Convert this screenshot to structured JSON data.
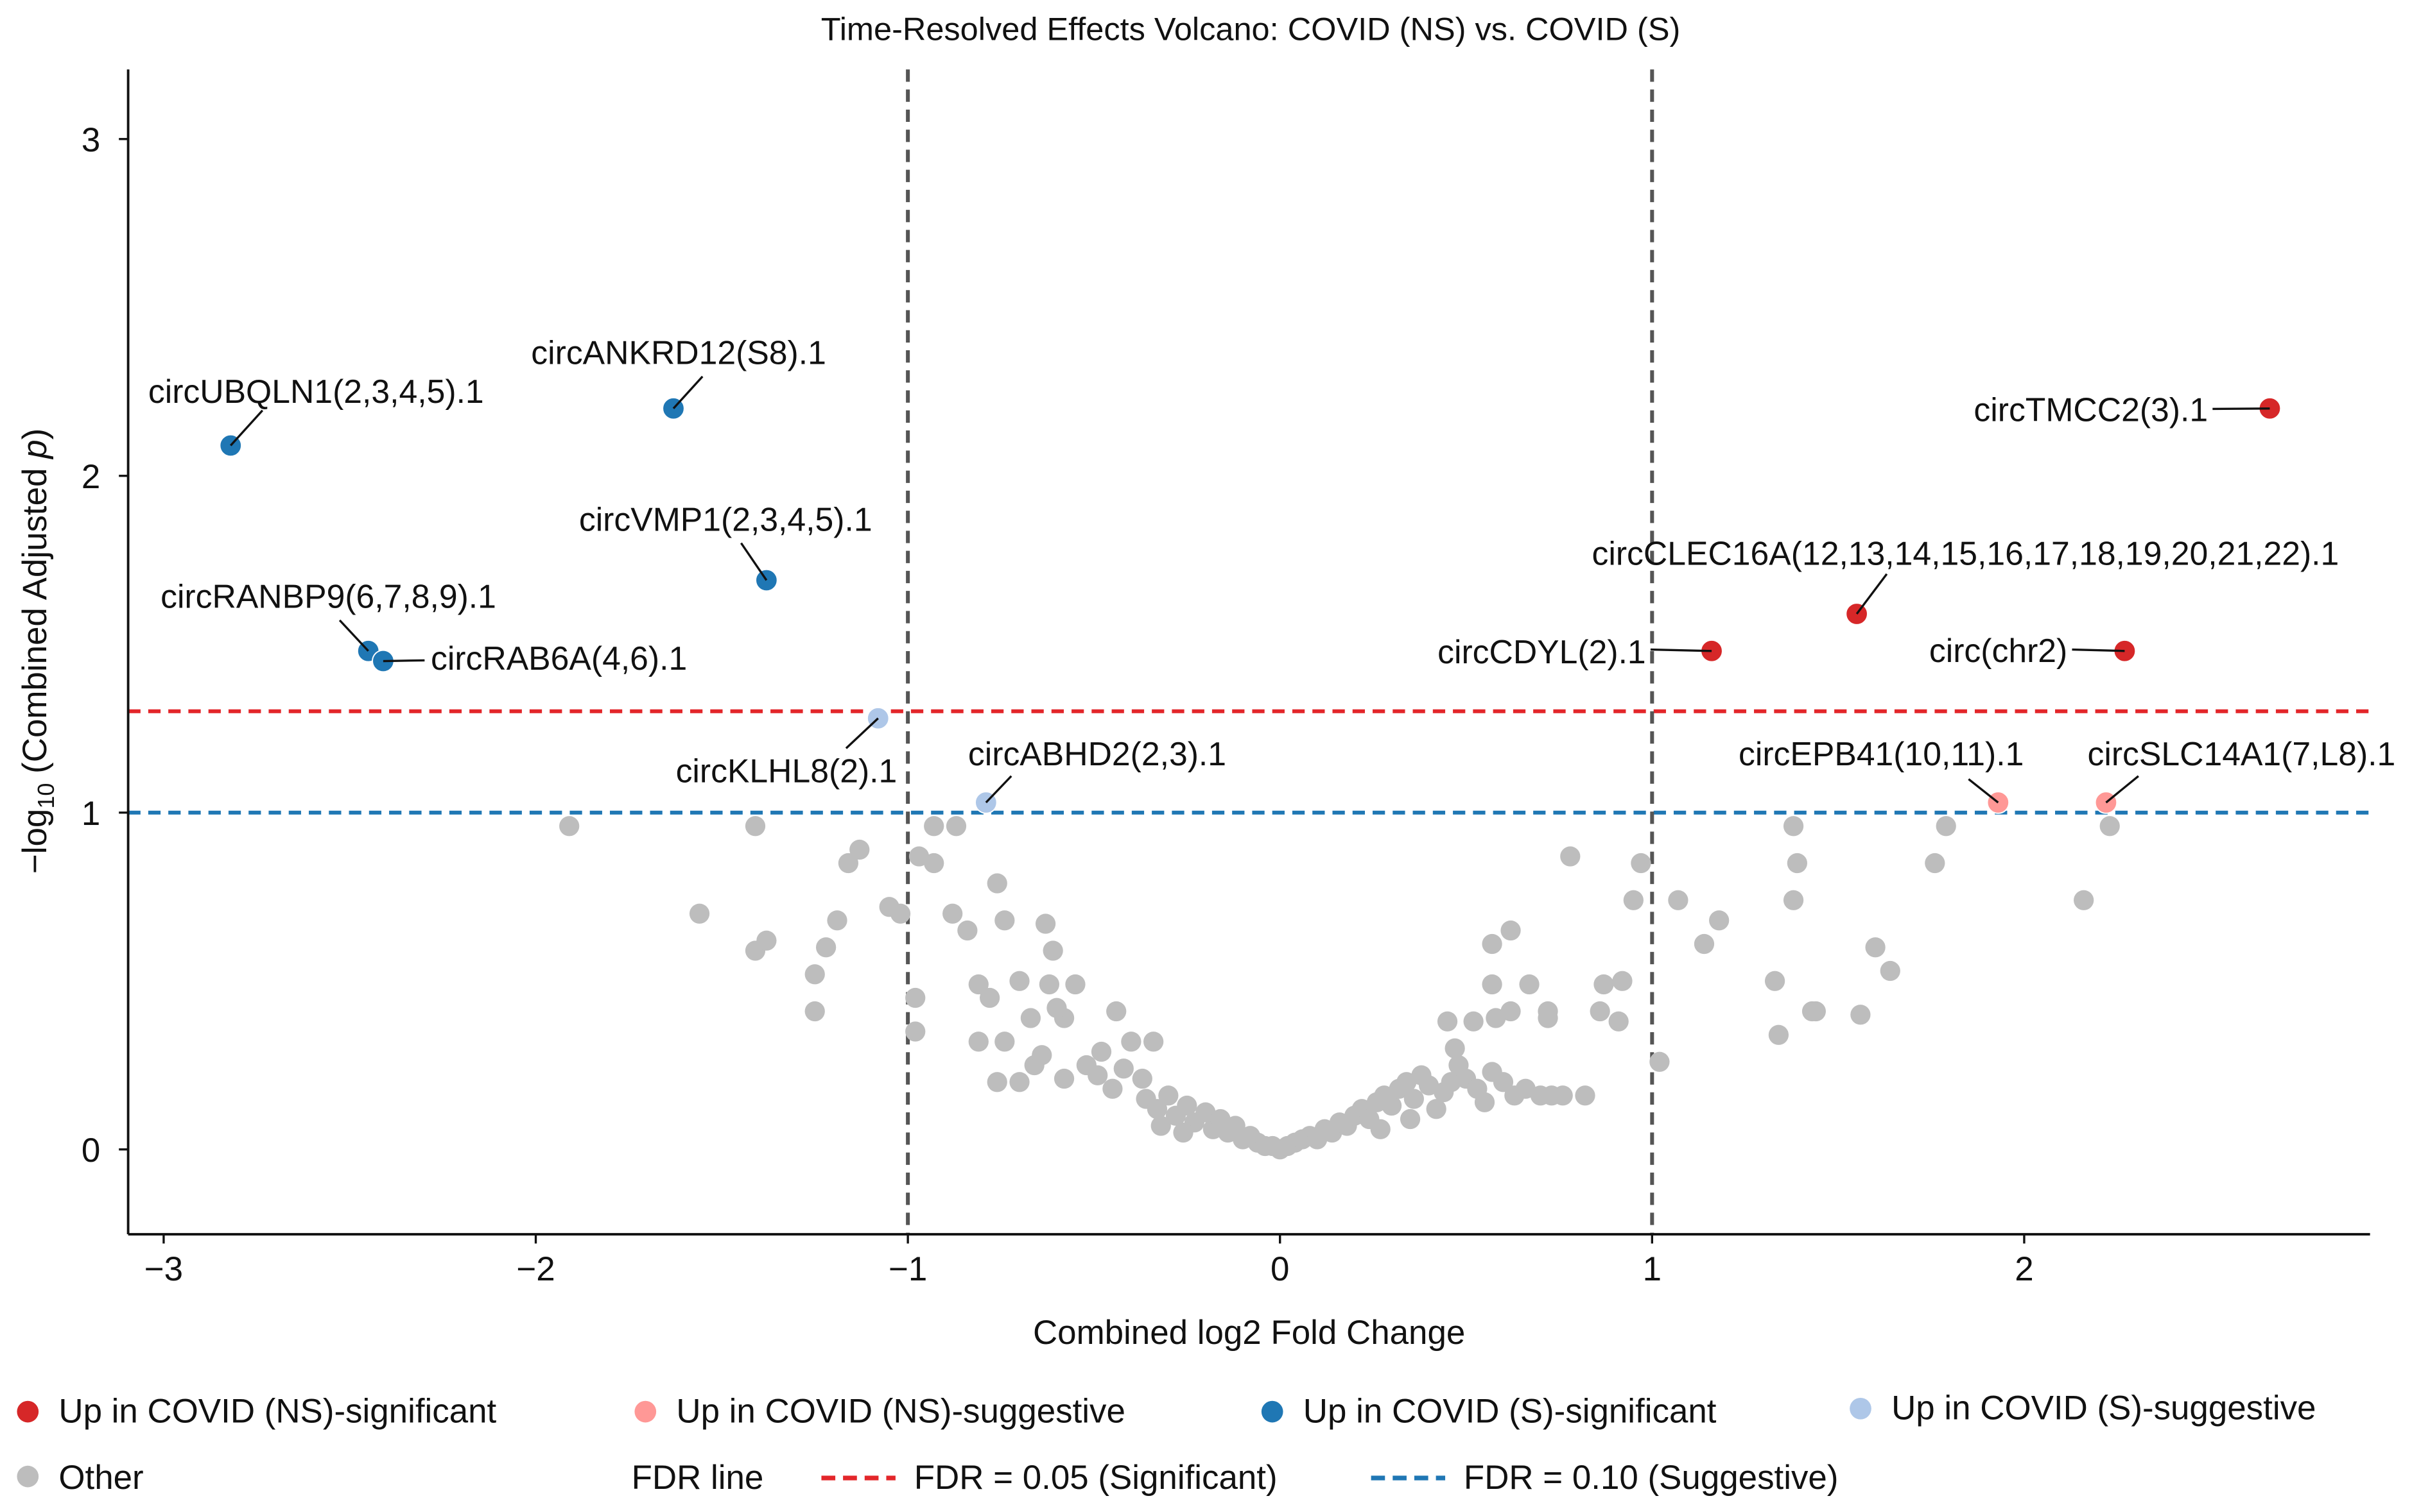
{
  "chart_data": {
    "type": "scatter",
    "title": "Time-Resolved Effects Volcano: COVID (NS) vs. COVID (S)",
    "xlabel": "Combined log2 Fold Change",
    "ylabel_prefix": "−log",
    "ylabel_sub": "10",
    "ylabel_mid": " (Combined Adjusted ",
    "ylabel_italic": "p",
    "ylabel_suffix": ")",
    "xlim": [
      -3.1,
      2.93
    ],
    "ylim": [
      -0.25,
      3.21
    ],
    "xticks": [
      -3,
      -2,
      -1,
      0,
      1,
      2
    ],
    "xtick_labels": [
      "−3",
      "−2",
      "−1",
      "0",
      "1",
      "2"
    ],
    "yticks": [
      0,
      1,
      2,
      3
    ],
    "ytick_labels": [
      "0",
      "1",
      "2",
      "3"
    ],
    "vlines": [
      -1,
      1
    ],
    "hlines": [
      {
        "y": 1.301,
        "color": "#e3262a",
        "label": "FDR = 0.05 (Significant)"
      },
      {
        "y": 1.0,
        "color": "#1f77b4",
        "label": "FDR = 0.10 (Suggestive)"
      }
    ],
    "categories": {
      "ns_sig": {
        "label": "Up in COVID (NS)-significant",
        "color": "#d62728"
      },
      "ns_sug": {
        "label": "Up in COVID (NS)-suggestive",
        "color": "#ff9896"
      },
      "s_sig": {
        "label": "Up in COVID (S)-significant",
        "color": "#1f77b4"
      },
      "s_sug": {
        "label": "Up in COVID (S)-suggestive",
        "color": "#aec7e8"
      },
      "other": {
        "label": "Other",
        "color": "#bdbdbd"
      }
    },
    "legend_fdr_title": "FDR line",
    "legend_placement": "bottom",
    "labeled_points": [
      {
        "name": "circUBQLN1(2,3,4,5).1",
        "x": -2.82,
        "y": 2.09,
        "cat": "s_sig"
      },
      {
        "name": "circANKRD12(S8).1",
        "x": -1.63,
        "y": 2.2,
        "cat": "s_sig"
      },
      {
        "name": "circVMP1(2,3,4,5).1",
        "x": -1.38,
        "y": 1.69,
        "cat": "s_sig"
      },
      {
        "name": "circRANBP9(6,7,8,9).1",
        "x": -2.45,
        "y": 1.48,
        "cat": "s_sig"
      },
      {
        "name": "circRAB6A(4,6).1",
        "x": -2.41,
        "y": 1.45,
        "cat": "s_sig"
      },
      {
        "name": "circKLHL8(2).1",
        "x": -1.08,
        "y": 1.28,
        "cat": "s_sug"
      },
      {
        "name": "circABHD2(2,3).1",
        "x": -0.79,
        "y": 1.03,
        "cat": "s_sug"
      },
      {
        "name": "circTMCC2(3).1",
        "x": 2.66,
        "y": 2.2,
        "cat": "ns_sig"
      },
      {
        "name": "circCLEC16A(12,13,14,15,16,17,18,19,20,21,22).1",
        "x": 1.55,
        "y": 1.59,
        "cat": "ns_sig"
      },
      {
        "name": "circCDYL(2).1",
        "x": 1.16,
        "y": 1.48,
        "cat": "ns_sig"
      },
      {
        "name": "circ(chr2)",
        "x": 2.27,
        "y": 1.48,
        "cat": "ns_sig"
      },
      {
        "name": "circEPB41(10,11).1",
        "x": 1.93,
        "y": 1.03,
        "cat": "ns_sug"
      },
      {
        "name": "circSLC14A1(7,L8).1",
        "x": 2.22,
        "y": 1.03,
        "cat": "ns_sug"
      }
    ],
    "other_points": [
      [
        -1.91,
        0.96
      ],
      [
        -1.56,
        0.7
      ],
      [
        -1.41,
        0.96
      ],
      [
        -1.41,
        0.59
      ],
      [
        -1.38,
        0.62
      ],
      [
        -1.25,
        0.52
      ],
      [
        -1.25,
        0.41
      ],
      [
        -1.22,
        0.6
      ],
      [
        -1.19,
        0.68
      ],
      [
        -1.16,
        0.85
      ],
      [
        -1.13,
        0.89
      ],
      [
        -1.05,
        0.72
      ],
      [
        -1.02,
        0.7
      ],
      [
        -0.98,
        0.45
      ],
      [
        -0.98,
        0.35
      ],
      [
        -0.97,
        0.87
      ],
      [
        -0.93,
        0.85
      ],
      [
        -0.93,
        0.96
      ],
      [
        -0.87,
        0.96
      ],
      [
        -0.88,
        0.7
      ],
      [
        -0.84,
        0.65
      ],
      [
        -0.76,
        0.79
      ],
      [
        -0.81,
        0.49
      ],
      [
        -0.78,
        0.45
      ],
      [
        -0.81,
        0.32
      ],
      [
        -0.76,
        0.2
      ],
      [
        -0.74,
        0.68
      ],
      [
        -0.7,
        0.5
      ],
      [
        -0.63,
        0.67
      ],
      [
        -0.61,
        0.59
      ],
      [
        -0.62,
        0.49
      ],
      [
        -0.58,
        0.39
      ],
      [
        -0.55,
        0.49
      ],
      [
        -0.67,
        0.39
      ],
      [
        -0.74,
        0.32
      ],
      [
        -0.7,
        0.2
      ],
      [
        -0.66,
        0.25
      ],
      [
        -0.58,
        0.21
      ],
      [
        -0.48,
        0.29
      ],
      [
        -0.44,
        0.41
      ],
      [
        -0.4,
        0.32
      ],
      [
        -0.34,
        0.32
      ],
      [
        -0.49,
        0.22
      ],
      [
        -0.37,
        0.21
      ],
      [
        -0.64,
        0.28
      ],
      [
        -0.6,
        0.42
      ],
      [
        -0.52,
        0.25
      ],
      [
        -0.45,
        0.18
      ],
      [
        -0.42,
        0.24
      ],
      [
        -0.36,
        0.15
      ],
      [
        -0.33,
        0.12
      ],
      [
        -0.3,
        0.16
      ],
      [
        -0.28,
        0.1
      ],
      [
        -0.25,
        0.13
      ],
      [
        -0.23,
        0.08
      ],
      [
        -0.2,
        0.11
      ],
      [
        -0.18,
        0.06
      ],
      [
        -0.16,
        0.09
      ],
      [
        -0.14,
        0.05
      ],
      [
        -0.12,
        0.07
      ],
      [
        -0.1,
        0.03
      ],
      [
        -0.08,
        0.04
      ],
      [
        -0.06,
        0.02
      ],
      [
        -0.04,
        0.01
      ],
      [
        -0.02,
        0.01
      ],
      [
        0.0,
        0.0
      ],
      [
        0.02,
        0.01
      ],
      [
        0.04,
        0.02
      ],
      [
        0.06,
        0.03
      ],
      [
        0.08,
        0.04
      ],
      [
        0.1,
        0.03
      ],
      [
        0.12,
        0.06
      ],
      [
        0.14,
        0.05
      ],
      [
        0.16,
        0.08
      ],
      [
        0.18,
        0.07
      ],
      [
        0.2,
        0.1
      ],
      [
        0.22,
        0.12
      ],
      [
        0.24,
        0.09
      ],
      [
        0.26,
        0.14
      ],
      [
        0.28,
        0.16
      ],
      [
        0.3,
        0.13
      ],
      [
        0.32,
        0.18
      ],
      [
        0.34,
        0.2
      ],
      [
        0.36,
        0.15
      ],
      [
        0.38,
        0.22
      ],
      [
        0.4,
        0.19
      ],
      [
        0.42,
        0.12
      ],
      [
        0.44,
        0.17
      ],
      [
        0.46,
        0.2
      ],
      [
        0.48,
        0.25
      ],
      [
        0.5,
        0.21
      ],
      [
        0.53,
        0.18
      ],
      [
        0.55,
        0.14
      ],
      [
        0.57,
        0.23
      ],
      [
        0.6,
        0.2
      ],
      [
        0.63,
        0.16
      ],
      [
        0.66,
        0.18
      ],
      [
        0.7,
        0.16
      ],
      [
        0.73,
        0.16
      ],
      [
        0.76,
        0.16
      ],
      [
        0.82,
        0.16
      ],
      [
        -0.26,
        0.05
      ],
      [
        -0.32,
        0.07
      ],
      [
        0.27,
        0.06
      ],
      [
        0.35,
        0.09
      ],
      [
        0.78,
        0.87
      ],
      [
        0.97,
        0.85
      ],
      [
        0.95,
        0.74
      ],
      [
        0.92,
        0.5
      ],
      [
        0.87,
        0.49
      ],
      [
        0.86,
        0.41
      ],
      [
        0.91,
        0.38
      ],
      [
        0.57,
        0.61
      ],
      [
        0.62,
        0.65
      ],
      [
        0.57,
        0.49
      ],
      [
        0.67,
        0.49
      ],
      [
        0.58,
        0.39
      ],
      [
        0.45,
        0.38
      ],
      [
        0.52,
        0.38
      ],
      [
        0.72,
        0.41
      ],
      [
        0.72,
        0.39
      ],
      [
        0.47,
        0.3
      ],
      [
        0.62,
        0.41
      ],
      [
        1.02,
        0.26
      ],
      [
        1.07,
        0.74
      ],
      [
        1.18,
        0.68
      ],
      [
        1.14,
        0.61
      ],
      [
        1.33,
        0.5
      ],
      [
        1.38,
        0.96
      ],
      [
        1.39,
        0.85
      ],
      [
        1.38,
        0.74
      ],
      [
        1.34,
        0.34
      ],
      [
        1.43,
        0.41
      ],
      [
        1.44,
        0.41
      ],
      [
        1.6,
        0.6
      ],
      [
        1.64,
        0.53
      ],
      [
        1.56,
        0.4
      ],
      [
        1.76,
        0.85
      ],
      [
        1.79,
        0.96
      ],
      [
        2.16,
        0.74
      ],
      [
        2.23,
        0.96
      ]
    ]
  }
}
